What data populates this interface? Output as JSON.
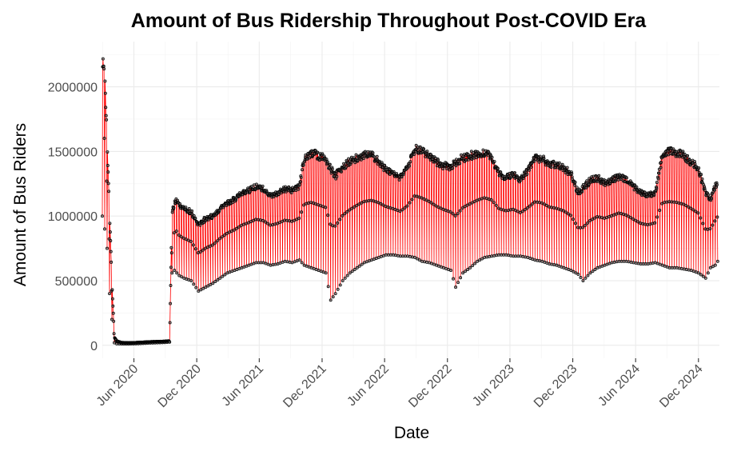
{
  "chart_data": {
    "type": "line",
    "title": "Amount of Bus Ridership Throughout Post-COVID Era",
    "xlabel": "Date",
    "ylabel": "Amount of Bus Riders",
    "x_range": [
      "2020-03-01",
      "2025-01-31"
    ],
    "ylim": [
      -100000,
      2350000
    ],
    "y_ticks": [
      0,
      500000,
      1000000,
      1500000,
      2000000
    ],
    "y_tick_labels": [
      "0",
      "500000",
      "1000000",
      "1500000",
      "2000000"
    ],
    "x_ticks": [
      "2020-06-01",
      "2020-12-01",
      "2021-06-01",
      "2021-12-01",
      "2022-06-01",
      "2022-12-01",
      "2023-06-01",
      "2023-12-01",
      "2024-06-01",
      "2024-12-01"
    ],
    "x_tick_labels": [
      "Jun 2020",
      "Dec 2020",
      "Jun 2021",
      "Dec 2021",
      "Jun 2022",
      "Dec 2022",
      "Jun 2023",
      "Dec 2023",
      "Jun 2024",
      "Dec 2024"
    ],
    "grid": true,
    "series": [
      {
        "line_color": "#ff0000",
        "point_color": "#000000",
        "x": [
          "2020-03-01",
          "2020-03-08",
          "2020-03-15",
          "2020-03-22",
          "2020-03-29",
          "2020-04-05",
          "2020-04-12",
          "2020-04-26",
          "2020-05-17",
          "2020-06-07",
          "2020-06-28",
          "2020-07-19",
          "2020-08-09",
          "2020-08-30",
          "2020-09-13",
          "2020-09-20",
          "2020-09-27",
          "2020-10-04",
          "2020-10-11",
          "2020-10-25",
          "2020-11-15",
          "2020-12-06",
          "2020-12-27",
          "2021-01-17",
          "2021-02-07",
          "2021-02-28",
          "2021-03-21",
          "2021-04-11",
          "2021-05-02",
          "2021-05-23",
          "2021-06-13",
          "2021-07-04",
          "2021-07-25",
          "2021-08-15",
          "2021-09-05",
          "2021-09-26",
          "2021-10-10",
          "2021-10-31",
          "2021-11-21",
          "2021-12-12",
          "2021-12-26",
          "2022-01-09",
          "2022-01-30",
          "2022-02-20",
          "2022-03-13",
          "2022-04-03",
          "2022-04-24",
          "2022-05-15",
          "2022-06-05",
          "2022-06-26",
          "2022-07-17",
          "2022-08-07",
          "2022-08-28",
          "2022-09-18",
          "2022-10-09",
          "2022-10-30",
          "2022-11-20",
          "2022-12-11",
          "2022-12-25",
          "2023-01-15",
          "2023-02-05",
          "2023-02-26",
          "2023-03-19",
          "2023-04-09",
          "2023-04-30",
          "2023-05-21",
          "2023-06-11",
          "2023-07-02",
          "2023-07-23",
          "2023-08-13",
          "2023-09-03",
          "2023-09-24",
          "2023-10-15",
          "2023-11-05",
          "2023-11-26",
          "2023-12-17",
          "2023-12-31",
          "2024-01-21",
          "2024-02-11",
          "2024-03-03",
          "2024-03-24",
          "2024-04-14",
          "2024-05-05",
          "2024-05-26",
          "2024-06-16",
          "2024-07-07",
          "2024-07-28",
          "2024-08-18",
          "2024-09-08",
          "2024-09-29",
          "2024-10-20",
          "2024-11-10",
          "2024-12-01",
          "2024-12-22",
          "2025-01-05",
          "2025-01-19",
          "2025-01-26"
        ],
        "upper": [
          2250000,
          2150000,
          1600000,
          1050000,
          500000,
          65000,
          35000,
          22000,
          20000,
          22000,
          25000,
          28000,
          30000,
          32000,
          35000,
          1050000,
          1120000,
          1150000,
          1100000,
          1080000,
          1050000,
          950000,
          1000000,
          1020000,
          1080000,
          1120000,
          1150000,
          1200000,
          1220000,
          1250000,
          1230000,
          1180000,
          1200000,
          1230000,
          1220000,
          1250000,
          1480000,
          1520000,
          1500000,
          1480000,
          1400000,
          1350000,
          1420000,
          1450000,
          1480000,
          1500000,
          1500000,
          1450000,
          1380000,
          1350000,
          1320000,
          1400000,
          1550000,
          1540000,
          1500000,
          1450000,
          1420000,
          1400000,
          1450000,
          1480000,
          1500000,
          1510000,
          1520000,
          1480000,
          1350000,
          1320000,
          1350000,
          1300000,
          1380000,
          1480000,
          1470000,
          1430000,
          1420000,
          1400000,
          1350000,
          1200000,
          1250000,
          1300000,
          1320000,
          1280000,
          1300000,
          1330000,
          1300000,
          1250000,
          1200000,
          1180000,
          1200000,
          1500000,
          1530000,
          1520000,
          1500000,
          1450000,
          1400000,
          1200000,
          1150000,
          1250000,
          1280000
        ],
        "lower": [
          1000000,
          900000,
          750000,
          400000,
          200000,
          20000,
          12000,
          10000,
          10000,
          12000,
          15000,
          18000,
          20000,
          22000,
          25000,
          560000,
          580000,
          560000,
          540000,
          520000,
          500000,
          420000,
          450000,
          480000,
          520000,
          560000,
          580000,
          600000,
          620000,
          640000,
          640000,
          620000,
          630000,
          650000,
          640000,
          660000,
          620000,
          600000,
          580000,
          560000,
          350000,
          400000,
          500000,
          560000,
          600000,
          640000,
          660000,
          680000,
          700000,
          700000,
          690000,
          690000,
          680000,
          650000,
          640000,
          620000,
          600000,
          580000,
          450000,
          560000,
          600000,
          650000,
          680000,
          690000,
          700000,
          700000,
          690000,
          690000,
          680000,
          660000,
          650000,
          630000,
          620000,
          600000,
          580000,
          550000,
          500000,
          560000,
          600000,
          620000,
          640000,
          650000,
          650000,
          640000,
          630000,
          630000,
          640000,
          620000,
          600000,
          600000,
          590000,
          580000,
          560000,
          520000,
          600000,
          620000,
          650000
        ]
      }
    ]
  }
}
